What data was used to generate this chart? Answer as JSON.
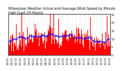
{
  "title": "Milwaukee Weather Actual and Average Wind Speed by Minute mph (Last 24 Hours)",
  "background_color": "#ffffff",
  "bar_color": "#ff0000",
  "line_color": "#0000ff",
  "grid_color": "#aaaaaa",
  "n_points": 1440,
  "ylim": [
    0,
    25
  ],
  "yticks": [
    0,
    5,
    10,
    15,
    20,
    25
  ],
  "n_xticks": 25,
  "title_fontsize": 3.5,
  "tick_fontsize": 2.8,
  "seed": 42
}
